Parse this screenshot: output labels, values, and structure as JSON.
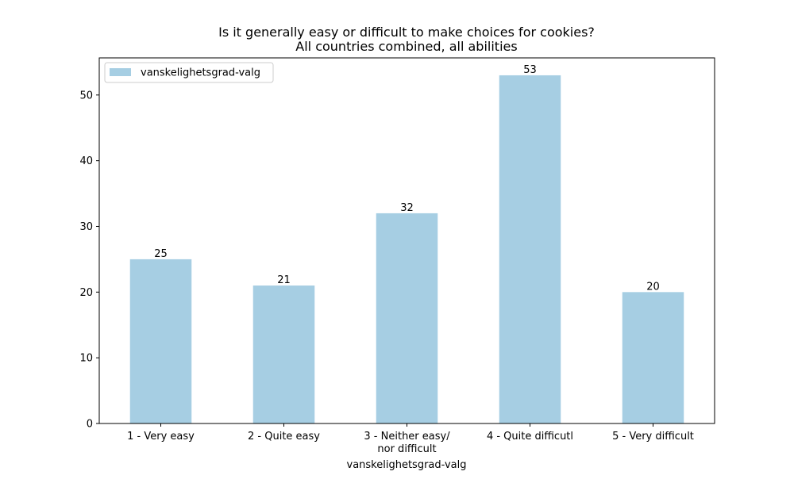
{
  "chart_data": {
    "type": "bar",
    "title": [
      "Is it generally easy or difficult to make choices for cookies?",
      "All countries combined, all abilities"
    ],
    "xlabel": "vanskelighetsgrad-valg",
    "ylabel": "",
    "categories": [
      [
        "1 - Very easy"
      ],
      [
        "2 - Quite easy"
      ],
      [
        "3 - Neither easy/",
        "nor difficult"
      ],
      [
        "4 - Quite difficutl"
      ],
      [
        "5 - Very difficult"
      ]
    ],
    "series": [
      {
        "name": "vanskelighetsgrad-valg",
        "values": [
          25,
          21,
          32,
          53,
          20
        ]
      }
    ],
    "data_labels": [
      "25",
      "21",
      "32",
      "53",
      "20"
    ],
    "ylim": [
      0,
      55.65
    ],
    "yticks": [
      0,
      10,
      20,
      30,
      40,
      50
    ],
    "grid": false,
    "legend": "top-left",
    "colors": {
      "bar": "#a6cee3",
      "axis": "#000000",
      "background": "#ffffff"
    }
  }
}
